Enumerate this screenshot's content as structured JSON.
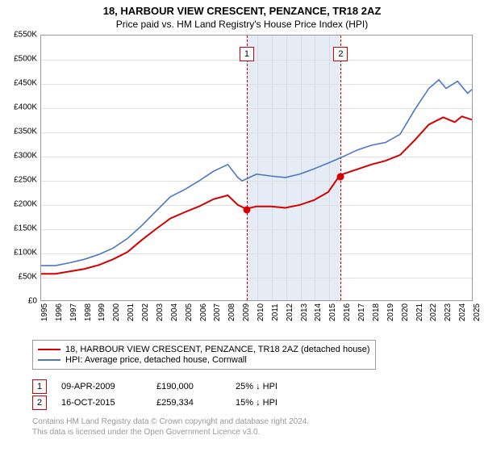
{
  "title": "18, HARBOUR VIEW CRESCENT, PENZANCE, TR18 2AZ",
  "subtitle": "Price paid vs. HM Land Registry's House Price Index (HPI)",
  "chart": {
    "type": "line",
    "background_color": "#ffffff",
    "grid_color": "#e0e0e0",
    "border_color": "#999999",
    "y": {
      "min": 0,
      "max": 550,
      "step": 50,
      "unit_prefix": "£",
      "unit_suffix": "K",
      "ticks": [
        "£0",
        "£50K",
        "£100K",
        "£150K",
        "£200K",
        "£250K",
        "£300K",
        "£350K",
        "£400K",
        "£450K",
        "£500K",
        "£550K"
      ]
    },
    "x": {
      "min": 1995,
      "max": 2025,
      "step": 1,
      "labels": [
        "1995",
        "1996",
        "1997",
        "1998",
        "1999",
        "2000",
        "2001",
        "2002",
        "2003",
        "2004",
        "2005",
        "2006",
        "2007",
        "2008",
        "2009",
        "2010",
        "2011",
        "2012",
        "2013",
        "2014",
        "2015",
        "2016",
        "2017",
        "2018",
        "2019",
        "2020",
        "2021",
        "2022",
        "2023",
        "2024",
        "2025"
      ]
    },
    "band": {
      "start_year": 2009.27,
      "end_year": 2015.79,
      "color": "#e6ecf5"
    },
    "series": [
      {
        "name": "property",
        "label": "18, HARBOUR VIEW CRESCENT, PENZANCE, TR18 2AZ (detached house)",
        "color": "#d40000",
        "width": 2,
        "data": [
          [
            1995,
            55
          ],
          [
            1996,
            55
          ],
          [
            1997,
            60
          ],
          [
            1998,
            65
          ],
          [
            1999,
            73
          ],
          [
            2000,
            85
          ],
          [
            2001,
            100
          ],
          [
            2002,
            125
          ],
          [
            2003,
            148
          ],
          [
            2004,
            170
          ],
          [
            2005,
            183
          ],
          [
            2006,
            195
          ],
          [
            2007,
            210
          ],
          [
            2008,
            218
          ],
          [
            2008.7,
            198
          ],
          [
            2009.27,
            190
          ],
          [
            2010,
            195
          ],
          [
            2011,
            195
          ],
          [
            2012,
            192
          ],
          [
            2013,
            198
          ],
          [
            2014,
            208
          ],
          [
            2015,
            225
          ],
          [
            2015.79,
            259
          ],
          [
            2016,
            262
          ],
          [
            2017,
            272
          ],
          [
            2018,
            282
          ],
          [
            2019,
            290
          ],
          [
            2020,
            302
          ],
          [
            2021,
            332
          ],
          [
            2022,
            365
          ],
          [
            2023,
            380
          ],
          [
            2023.8,
            370
          ],
          [
            2024.3,
            382
          ],
          [
            2025,
            375
          ]
        ]
      },
      {
        "name": "hpi",
        "label": "HPI: Average price, detached house, Cornwall",
        "color": "#4a77c4",
        "width": 1.6,
        "data": [
          [
            1995,
            72
          ],
          [
            1996,
            72
          ],
          [
            1997,
            78
          ],
          [
            1998,
            85
          ],
          [
            1999,
            95
          ],
          [
            2000,
            108
          ],
          [
            2001,
            128
          ],
          [
            2002,
            155
          ],
          [
            2003,
            185
          ],
          [
            2004,
            215
          ],
          [
            2005,
            230
          ],
          [
            2006,
            248
          ],
          [
            2007,
            268
          ],
          [
            2008,
            282
          ],
          [
            2008.7,
            255
          ],
          [
            2009,
            248
          ],
          [
            2010,
            262
          ],
          [
            2011,
            258
          ],
          [
            2012,
            255
          ],
          [
            2013,
            262
          ],
          [
            2014,
            273
          ],
          [
            2015,
            285
          ],
          [
            2016,
            298
          ],
          [
            2017,
            312
          ],
          [
            2018,
            322
          ],
          [
            2019,
            328
          ],
          [
            2020,
            345
          ],
          [
            2021,
            395
          ],
          [
            2022,
            440
          ],
          [
            2022.7,
            458
          ],
          [
            2023.2,
            440
          ],
          [
            2024,
            455
          ],
          [
            2024.7,
            430
          ],
          [
            2025,
            438
          ]
        ]
      }
    ],
    "annotations": [
      {
        "n": "1",
        "year": 2009.27,
        "value": 190,
        "color": "#d40000"
      },
      {
        "n": "2",
        "year": 2015.79,
        "value": 259,
        "color": "#d40000"
      }
    ]
  },
  "sales": [
    {
      "n": "1",
      "date": "09-APR-2009",
      "price": "£190,000",
      "pct": "25% ↓ HPI",
      "color": "#d40000"
    },
    {
      "n": "2",
      "date": "16-OCT-2015",
      "price": "£259,334",
      "pct": "15% ↓ HPI",
      "color": "#d40000"
    }
  ],
  "footer": {
    "line1": "Contains HM Land Registry data © Crown copyright and database right 2024.",
    "line2": "This data is licensed under the Open Government Licence v3.0."
  }
}
